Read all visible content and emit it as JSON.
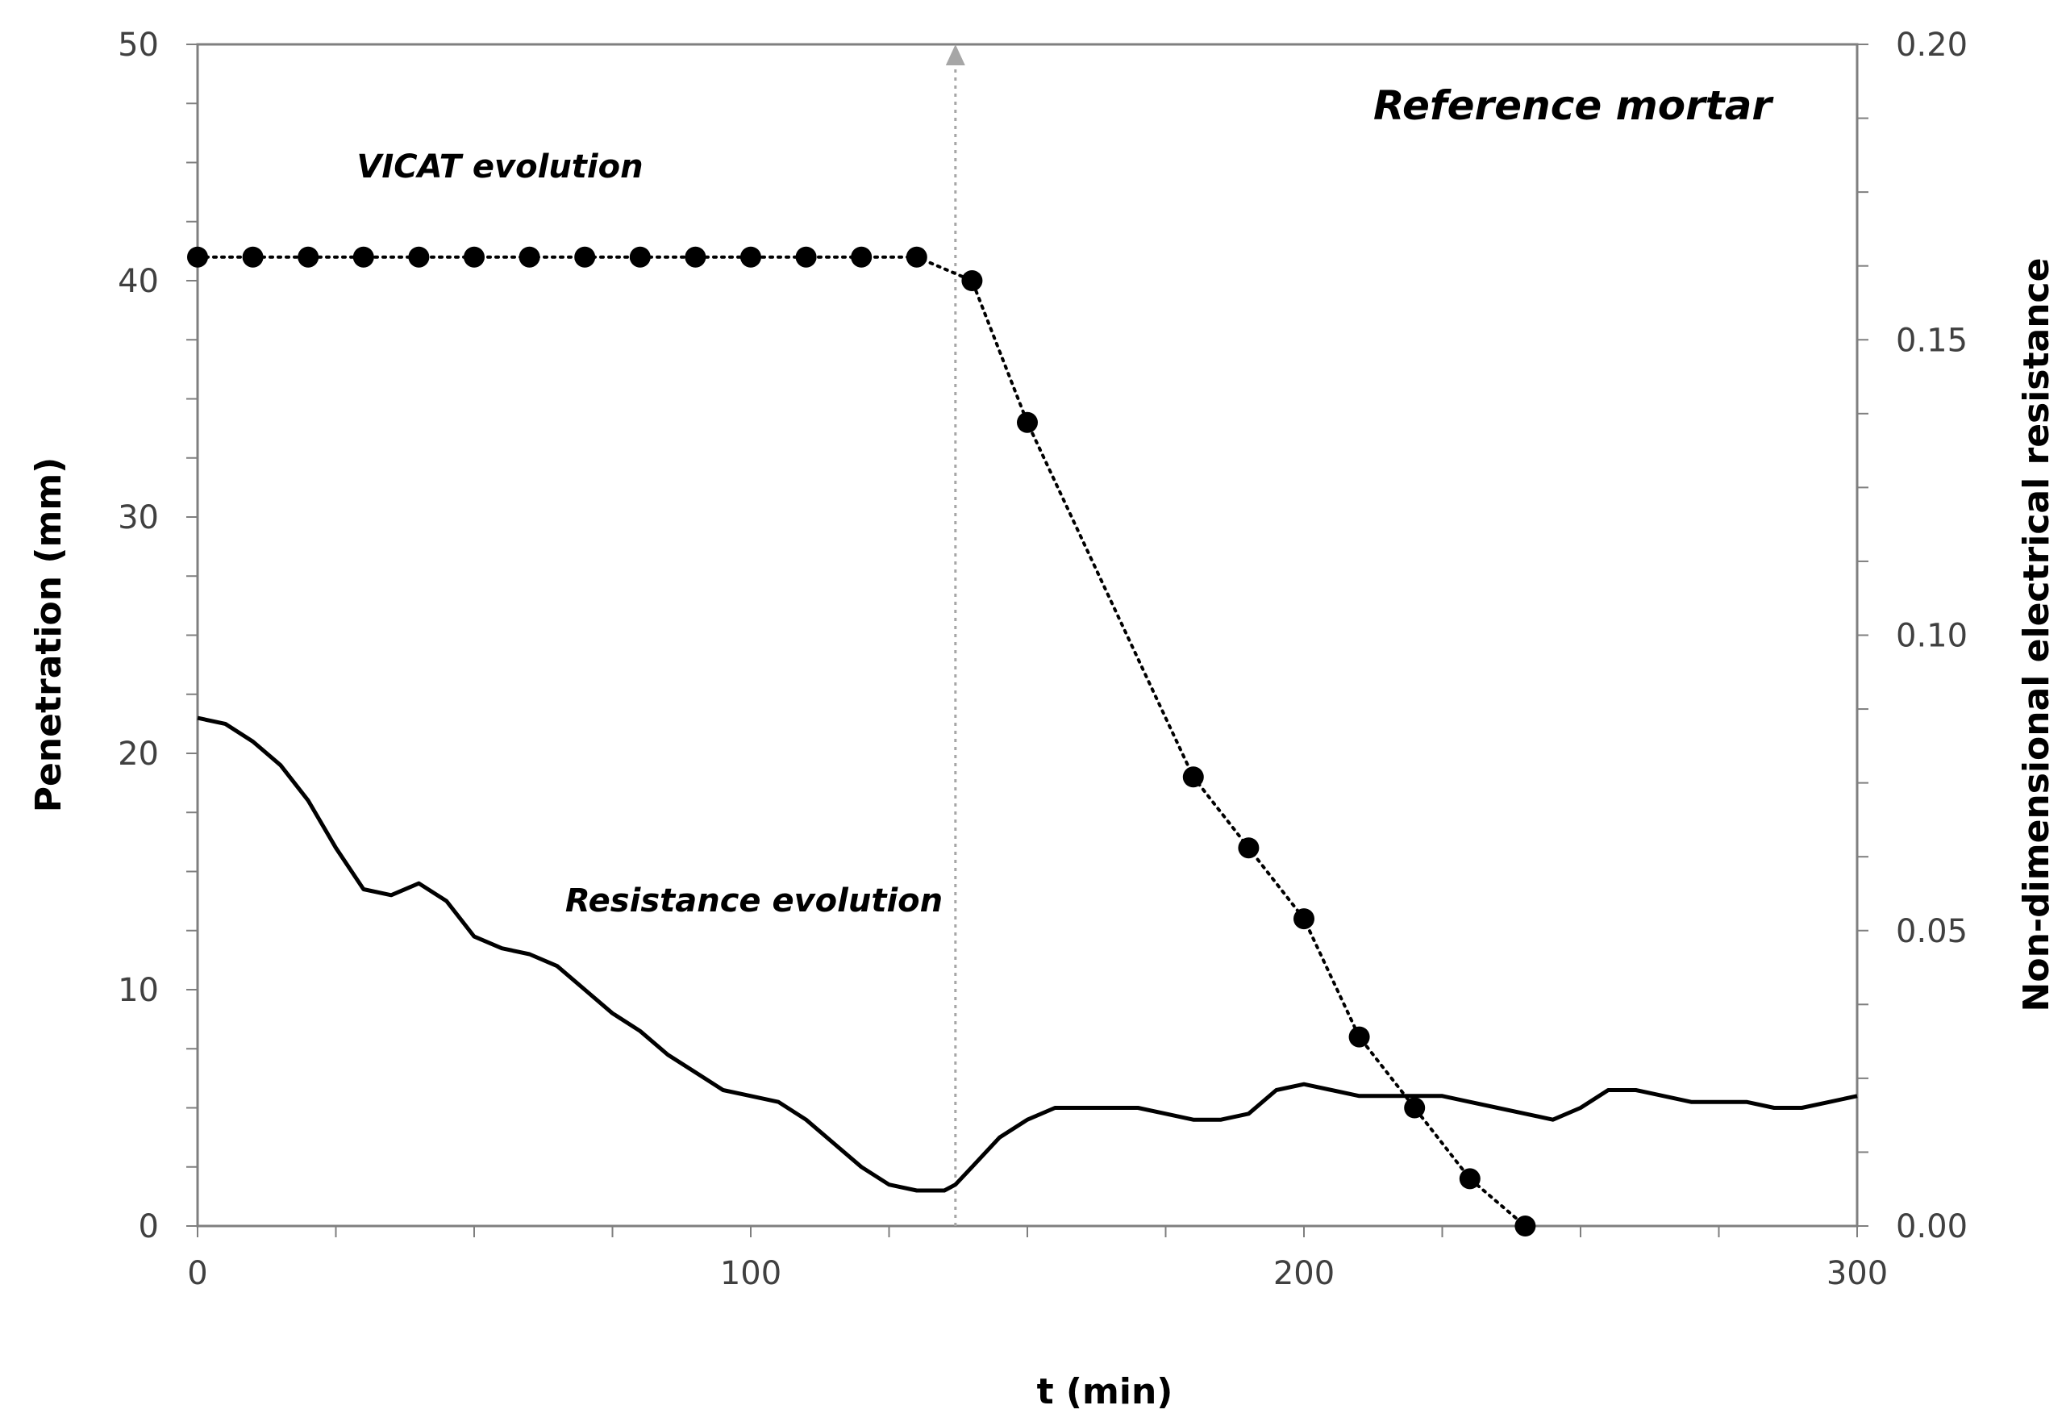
{
  "chart_data": {
    "type": "line",
    "title": "Reference mortar",
    "xlabel": "t (min)",
    "ylabel": "Penetration (mm)",
    "y2label": "Non-dimensional electrical resistance",
    "xlim": [
      0,
      300
    ],
    "ylim": [
      0,
      50
    ],
    "y2lim": [
      0,
      0.2
    ],
    "xticks": [
      "0",
      "100",
      "200",
      "300"
    ],
    "yticks": [
      "0",
      "10",
      "20",
      "30",
      "40",
      "50"
    ],
    "y2ticks": [
      "0.00",
      "0.05",
      "0.10",
      "0.15",
      "0.20"
    ],
    "grid": false,
    "marker_line_x": 137,
    "annotations": {
      "vicat": "VICAT evolution",
      "resistance": "Resistance evolution"
    },
    "colors": {
      "axis": "#7f7f7f",
      "series": "#000000",
      "marker_line": "#a6a6a6"
    },
    "series": [
      {
        "name": "VICAT evolution",
        "axis": "left",
        "style": "dotted-markers",
        "x": [
          0,
          10,
          20,
          30,
          40,
          50,
          60,
          70,
          80,
          90,
          100,
          110,
          120,
          130,
          140,
          150,
          180,
          190,
          200,
          210,
          220,
          230,
          240
        ],
        "y": [
          41,
          41,
          41,
          41,
          41,
          41,
          41,
          41,
          41,
          41,
          41,
          41,
          41,
          41,
          40,
          34,
          19,
          16,
          13,
          8,
          5,
          2,
          0
        ]
      },
      {
        "name": "Resistance evolution",
        "axis": "right",
        "style": "solid",
        "x": [
          0,
          5,
          10,
          15,
          20,
          25,
          30,
          35,
          40,
          45,
          50,
          55,
          60,
          65,
          70,
          75,
          80,
          85,
          90,
          95,
          100,
          105,
          110,
          115,
          120,
          125,
          130,
          135,
          137,
          140,
          145,
          150,
          155,
          160,
          165,
          170,
          175,
          180,
          185,
          190,
          195,
          200,
          205,
          210,
          215,
          220,
          225,
          230,
          235,
          240,
          245,
          250,
          255,
          260,
          265,
          270,
          275,
          280,
          285,
          290,
          295,
          300
        ],
        "y": [
          0.086,
          0.085,
          0.082,
          0.078,
          0.072,
          0.064,
          0.057,
          0.056,
          0.058,
          0.055,
          0.049,
          0.047,
          0.046,
          0.044,
          0.04,
          0.036,
          0.033,
          0.029,
          0.026,
          0.023,
          0.022,
          0.021,
          0.018,
          0.014,
          0.01,
          0.007,
          0.006,
          0.006,
          0.007,
          0.01,
          0.015,
          0.018,
          0.02,
          0.02,
          0.02,
          0.02,
          0.019,
          0.018,
          0.018,
          0.019,
          0.023,
          0.024,
          0.023,
          0.022,
          0.022,
          0.022,
          0.022,
          0.021,
          0.02,
          0.019,
          0.018,
          0.02,
          0.023,
          0.023,
          0.022,
          0.021,
          0.021,
          0.021,
          0.02,
          0.02,
          0.021,
          0.022
        ]
      }
    ]
  }
}
